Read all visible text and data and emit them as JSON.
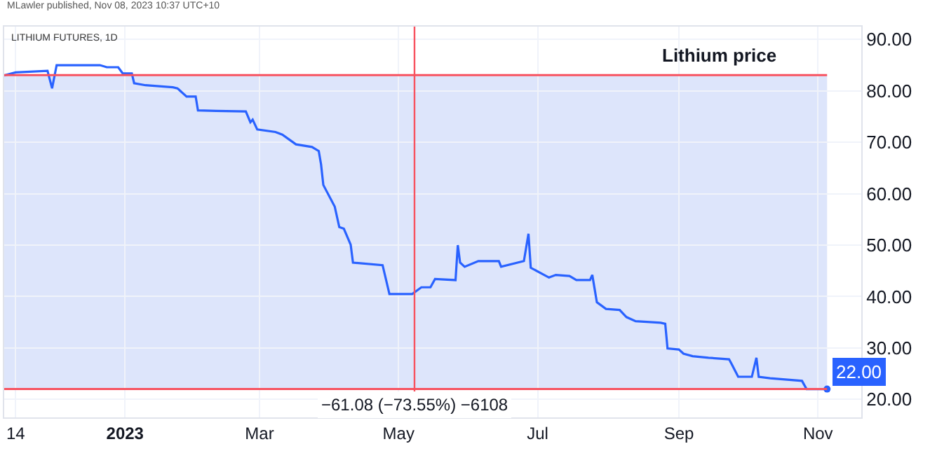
{
  "chart_data": {
    "type": "line",
    "title": "Lithium price",
    "subtitle": "LITHIUM FUTURES, 1D",
    "annotations": [
      "MLawler published, Nov 08, 2023 10:37 UTC+10",
      {
        "text": "−61.08 (−73.55%) −6108",
        "x": "2023-05-08",
        "y": 22
      }
    ],
    "series": [
      {
        "color": "#2962ff",
        "x": [
          "2022-11-09",
          "2022-11-14",
          "2022-11-28",
          "2022-11-30",
          "2022-12-02",
          "2022-12-21",
          "2022-12-24",
          "2022-12-29",
          "2022-12-31",
          "2023-01-04",
          "2023-01-05",
          "2023-01-10",
          "2023-01-22",
          "2023-01-24",
          "2023-01-28",
          "2023-02-01",
          "2023-02-02",
          "2023-02-10",
          "2023-02-23",
          "2023-02-25",
          "2023-02-26",
          "2023-02-28",
          "2023-03-08",
          "2023-03-11",
          "2023-03-17",
          "2023-03-24",
          "2023-03-27",
          "2023-03-28",
          "2023-03-29",
          "2023-04-03",
          "2023-04-05",
          "2023-04-07",
          "2023-04-10",
          "2023-04-11",
          "2023-04-24",
          "2023-04-27",
          "2023-05-07",
          "2023-05-11",
          "2023-05-15",
          "2023-05-17",
          "2023-05-26",
          "2023-05-27",
          "2023-05-28",
          "2023-05-30",
          "2023-06-05",
          "2023-06-14",
          "2023-06-15",
          "2023-06-25",
          "2023-06-27",
          "2023-06-28",
          "2023-07-06",
          "2023-07-09",
          "2023-07-15",
          "2023-07-18",
          "2023-07-24",
          "2023-07-25",
          "2023-07-27",
          "2023-07-31",
          "2023-08-06",
          "2023-08-09",
          "2023-08-13",
          "2023-08-24",
          "2023-08-26",
          "2023-08-27",
          "2023-09-01",
          "2023-09-03",
          "2023-09-07",
          "2023-09-14",
          "2023-09-23",
          "2023-09-24",
          "2023-09-27",
          "2023-10-03",
          "2023-10-05",
          "2023-10-06",
          "2023-10-11",
          "2023-10-25",
          "2023-10-27",
          "2023-11-05"
        ],
        "values": [
          83.0,
          83.6,
          83.9,
          80.5,
          85.0,
          85.0,
          84.6,
          84.6,
          83.4,
          83.4,
          81.5,
          81.1,
          80.7,
          80.5,
          78.9,
          78.9,
          76.2,
          76.1,
          76.0,
          73.9,
          74.4,
          72.5,
          72.0,
          71.5,
          69.6,
          69.1,
          68.3,
          65.7,
          61.7,
          57.5,
          53.5,
          53.2,
          50.1,
          46.6,
          46.1,
          40.5,
          40.5,
          41.8,
          41.8,
          43.4,
          43.2,
          50.0,
          46.6,
          45.8,
          46.9,
          46.9,
          45.8,
          46.9,
          52.2,
          45.6,
          43.7,
          44.2,
          44.0,
          43.2,
          43.2,
          44.2,
          38.9,
          37.6,
          37.4,
          36.0,
          35.2,
          34.9,
          34.7,
          29.9,
          29.7,
          28.9,
          28.4,
          28.1,
          27.8,
          27.0,
          24.4,
          24.4,
          28.1,
          24.4,
          24.1,
          23.6,
          22.0,
          22.0
        ],
        "value_labels": [
          null,
          null,
          null,
          null,
          null,
          null,
          null,
          null,
          null,
          null,
          null,
          null,
          null,
          null,
          null,
          null,
          null,
          null,
          null,
          null,
          null,
          null,
          null,
          null,
          null,
          null,
          null,
          null,
          null,
          null,
          null,
          null,
          null,
          null,
          null,
          null,
          null,
          null,
          null,
          null,
          null,
          null,
          null,
          null,
          null,
          null,
          null,
          null,
          null,
          null,
          null,
          null,
          null,
          null,
          null,
          null,
          null,
          null,
          null,
          null,
          null,
          null,
          null,
          null,
          null,
          null,
          null,
          null,
          null,
          null,
          null,
          null,
          null,
          null,
          null,
          null,
          null,
          "22.00"
        ]
      }
    ],
    "bands": [
      {
        "axis": "y",
        "from": 22,
        "to": 83.08,
        "color": "#dde5fb"
      }
    ],
    "ref_lines": [
      {
        "axis": "y",
        "value": 83.08,
        "color": "#f7525f"
      },
      {
        "axis": "y",
        "value": 22,
        "color": "#f7525f"
      },
      {
        "axis": "x",
        "value": "2023-05-08",
        "color": "#f7525f"
      }
    ],
    "xlim": [
      "2022-11-09",
      "2023-11-20"
    ],
    "xticks": [
      {
        "value": "2022-11-14",
        "label": "14"
      },
      {
        "value": "2023-01-01",
        "label": "2023"
      },
      {
        "value": "2023-03-01",
        "label": "Mar"
      },
      {
        "value": "2023-05-01",
        "label": "May"
      },
      {
        "value": "2023-07-01",
        "label": "Jul"
      },
      {
        "value": "2023-09-01",
        "label": "Sep"
      },
      {
        "value": "2023-11-01",
        "label": "Nov"
      }
    ],
    "ylim": [
      16.5,
      92.5
    ],
    "yticks": [
      {
        "value": 20,
        "label": "20.00"
      },
      {
        "value": 30,
        "label": "30.00"
      },
      {
        "value": 40,
        "label": "40.00"
      },
      {
        "value": 50,
        "label": "50.00"
      },
      {
        "value": 60,
        "label": "60.00"
      },
      {
        "value": 70,
        "label": "70.00"
      },
      {
        "value": 80,
        "label": "80.00"
      },
      {
        "value": 90,
        "label": "90.00"
      }
    ],
    "grid": true,
    "marker": "none",
    "line_style": "solid"
  }
}
